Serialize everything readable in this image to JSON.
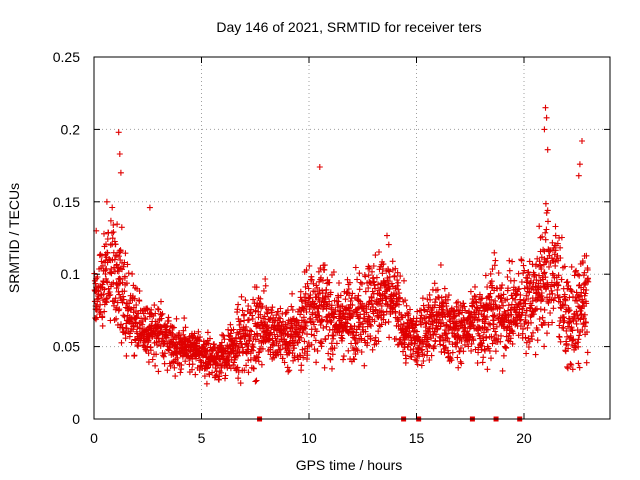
{
  "chart_data": {
    "type": "scatter",
    "title": "Day 146 of 2021, SRMTID for receiver ters",
    "xlabel": "GPS time / hours",
    "ylabel": "SRMTID / TECUs",
    "xlim": [
      0,
      24
    ],
    "ylim": [
      0,
      0.25
    ],
    "grid": true,
    "marker": "+",
    "color": "#e00000",
    "xticks": [
      0,
      5,
      10,
      15,
      20
    ],
    "xtick_labels": [
      "0",
      "5",
      "10",
      "15",
      "20"
    ],
    "yticks": [
      0,
      0.05,
      0.1,
      0.15,
      0.2,
      0.25
    ],
    "ytick_labels": [
      "0",
      "0.05",
      "0.1",
      "0.15",
      "0.2",
      "0.25"
    ],
    "sampling_note": "dense cloud approximated by trend per hour with spread",
    "trend": {
      "x": [
        0,
        0.5,
        1,
        1.5,
        2,
        2.5,
        3,
        3.5,
        4,
        4.5,
        5,
        5.5,
        6,
        6.5,
        7,
        7.5,
        8,
        8.5,
        9,
        9.5,
        10,
        10.5,
        11,
        11.5,
        12,
        12.5,
        13,
        13.5,
        14,
        14.5,
        15,
        15.5,
        16,
        16.5,
        17,
        17.5,
        18,
        18.5,
        19,
        19.5,
        20,
        20.5,
        21,
        21.5,
        22,
        22.5,
        23
      ],
      "y": [
        0.09,
        0.1,
        0.1,
        0.085,
        0.065,
        0.06,
        0.058,
        0.055,
        0.05,
        0.048,
        0.045,
        0.042,
        0.042,
        0.048,
        0.055,
        0.06,
        0.065,
        0.058,
        0.055,
        0.06,
        0.075,
        0.08,
        0.07,
        0.068,
        0.07,
        0.075,
        0.08,
        0.085,
        0.08,
        0.06,
        0.055,
        0.065,
        0.07,
        0.065,
        0.06,
        0.065,
        0.07,
        0.075,
        0.07,
        0.075,
        0.08,
        0.085,
        0.1,
        0.1,
        0.065,
        0.07,
        0.09
      ],
      "spread": [
        0.025,
        0.03,
        0.035,
        0.03,
        0.02,
        0.02,
        0.018,
        0.015,
        0.013,
        0.013,
        0.012,
        0.012,
        0.013,
        0.018,
        0.025,
        0.025,
        0.022,
        0.02,
        0.02,
        0.025,
        0.03,
        0.03,
        0.025,
        0.022,
        0.025,
        0.03,
        0.03,
        0.03,
        0.025,
        0.02,
        0.02,
        0.022,
        0.025,
        0.022,
        0.02,
        0.022,
        0.025,
        0.028,
        0.025,
        0.025,
        0.028,
        0.03,
        0.04,
        0.04,
        0.025,
        0.03,
        0.04
      ]
    },
    "peaks": [
      {
        "x": 1.15,
        "y": 0.198
      },
      {
        "x": 1.2,
        "y": 0.183
      },
      {
        "x": 1.25,
        "y": 0.17
      },
      {
        "x": 10.5,
        "y": 0.174
      },
      {
        "x": 21.0,
        "y": 0.215
      },
      {
        "x": 21.05,
        "y": 0.208
      },
      {
        "x": 20.95,
        "y": 0.2
      },
      {
        "x": 21.1,
        "y": 0.186
      },
      {
        "x": 22.7,
        "y": 0.192
      },
      {
        "x": 22.6,
        "y": 0.176
      },
      {
        "x": 22.55,
        "y": 0.168
      },
      {
        "x": 0.1,
        "y": 0.13
      },
      {
        "x": 0.6,
        "y": 0.15
      },
      {
        "x": 2.6,
        "y": 0.146
      }
    ],
    "zero_markers": [
      {
        "x": 7.7,
        "y": 0
      },
      {
        "x": 14.4,
        "y": 0
      },
      {
        "x": 15.1,
        "y": 0
      },
      {
        "x": 17.6,
        "y": 0
      },
      {
        "x": 18.7,
        "y": 0
      },
      {
        "x": 19.8,
        "y": 0
      }
    ]
  }
}
